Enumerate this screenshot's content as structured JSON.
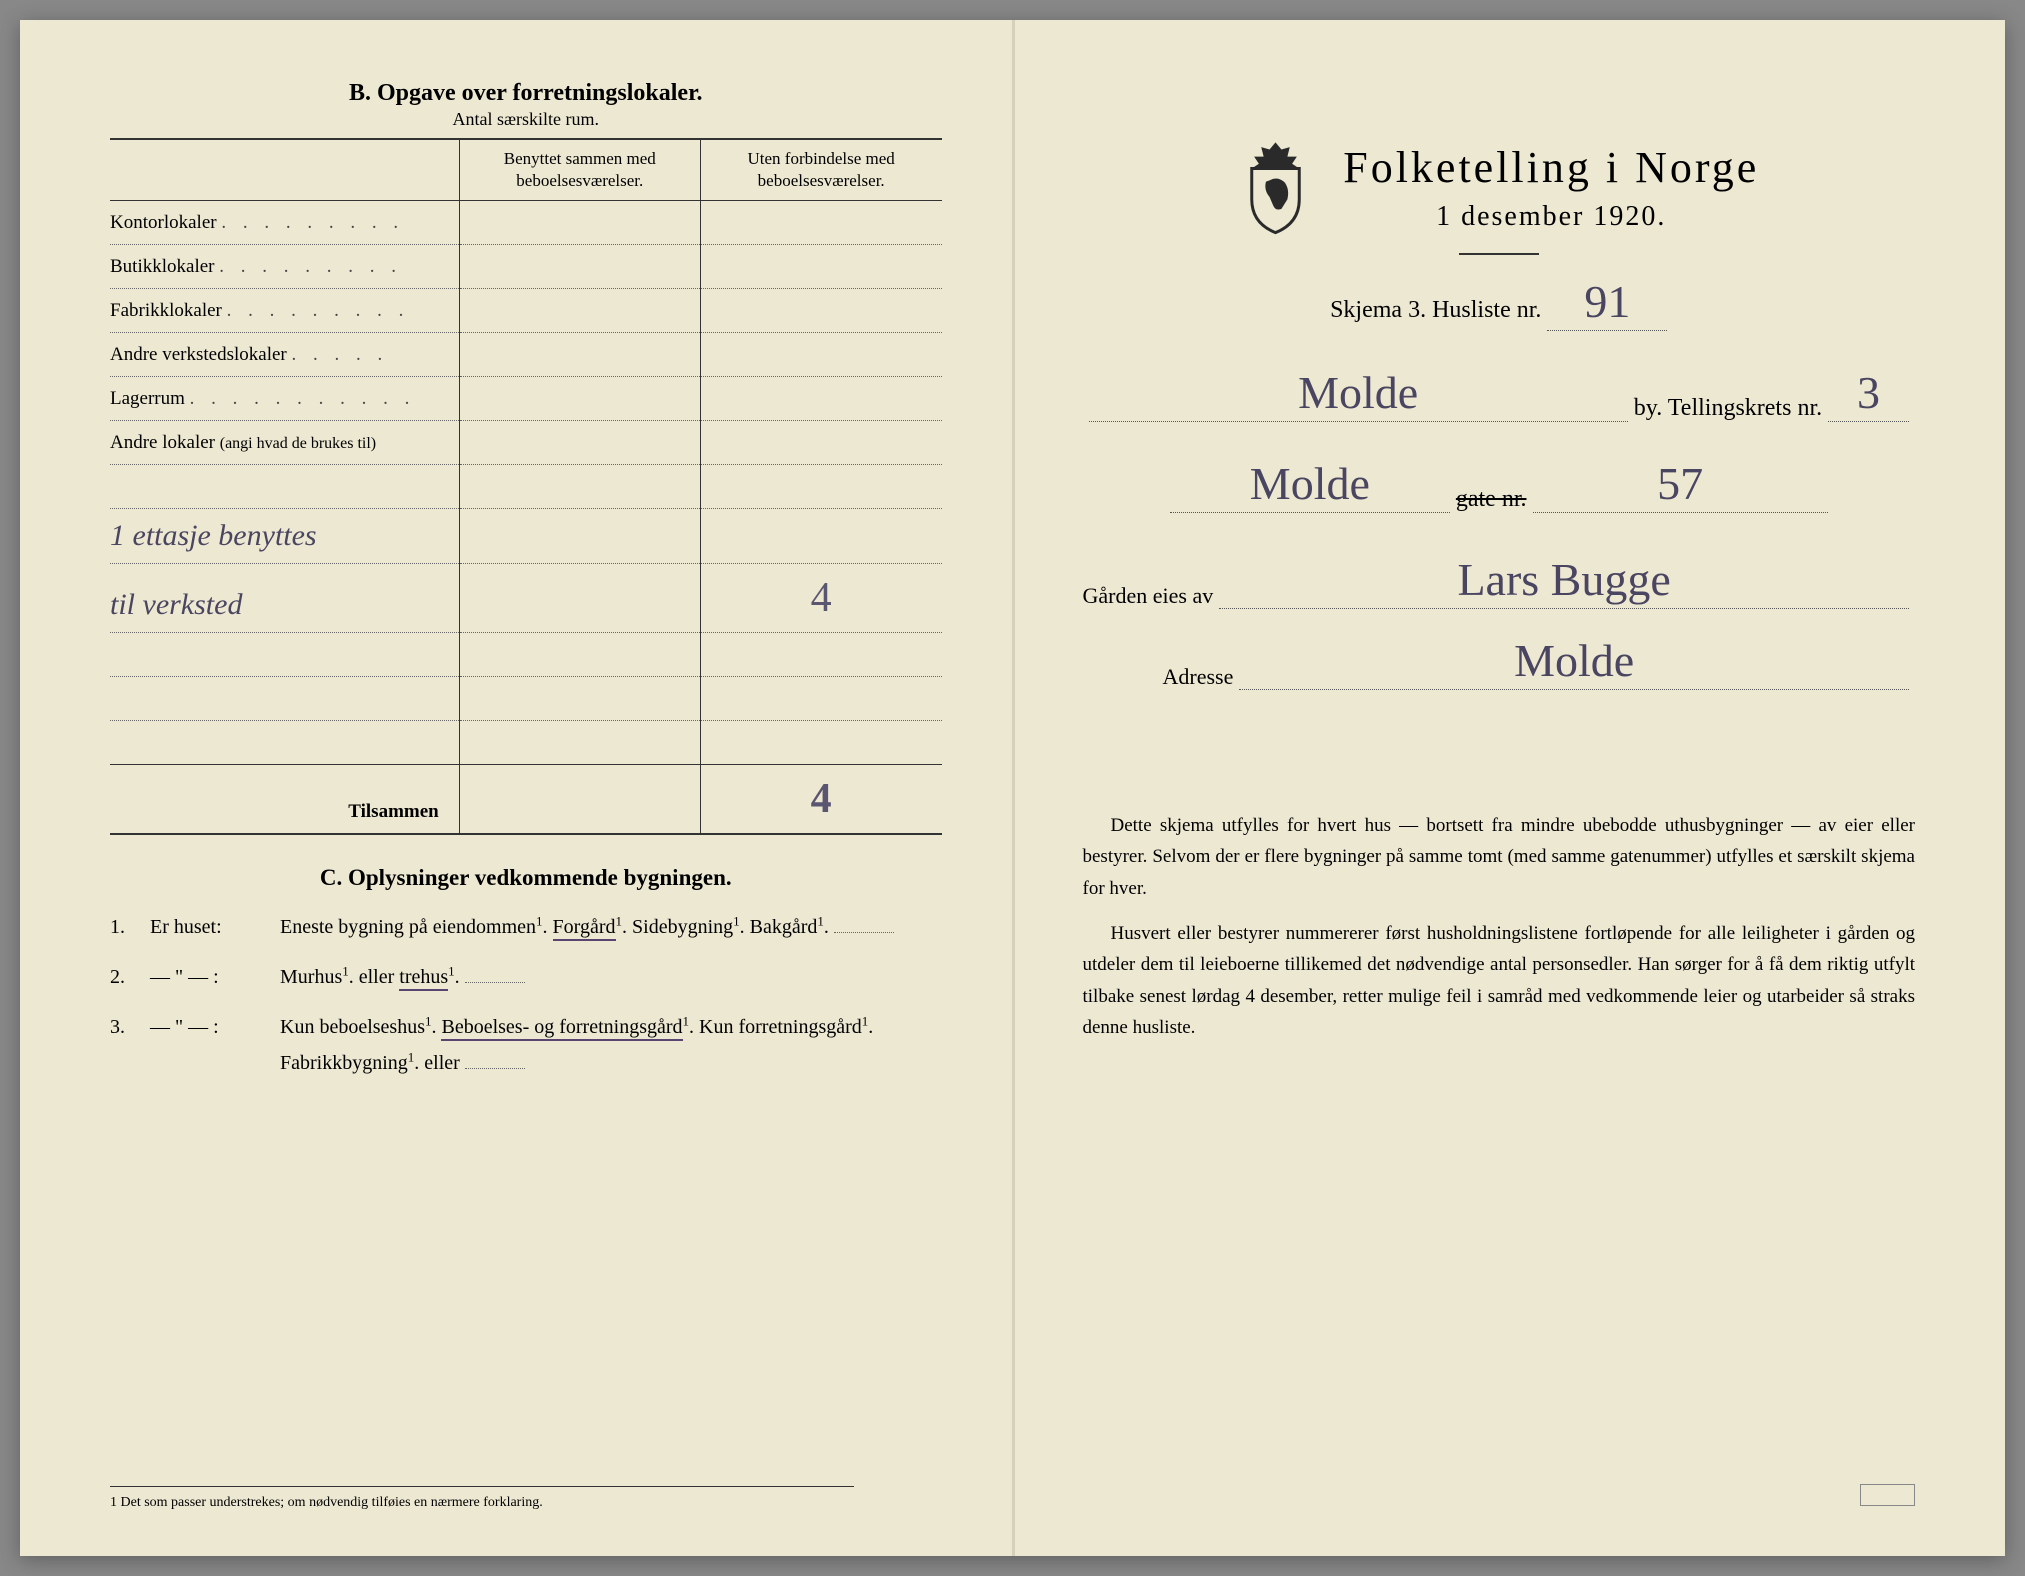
{
  "colors": {
    "paper": "#ede8d2",
    "ink": "#2a2a2a",
    "handwriting": "#4a4560"
  },
  "left": {
    "section_b": {
      "title": "B.  Opgave over forretningslokaler.",
      "subtitle": "Antal særskilte rum.",
      "col2_header": "Benyttet sammen med beboelsesværelser.",
      "col3_header": "Uten forbindelse med beboelsesværelser.",
      "rows": [
        {
          "label": "Kontorlokaler",
          "dots": ". . . . . . . . .",
          "c2": "",
          "c3": ""
        },
        {
          "label": "Butikklokaler",
          "dots": ". . . . . . . . .",
          "c2": "",
          "c3": ""
        },
        {
          "label": "Fabrikklokaler",
          "dots": ". . . . . . . . .",
          "c2": "",
          "c3": ""
        },
        {
          "label": "Andre verkstedslokaler",
          "dots": ". . . . .",
          "c2": "",
          "c3": ""
        },
        {
          "label": "Lagerrum",
          "dots": ". . . . . . . . . . .",
          "c2": "",
          "c3": ""
        },
        {
          "label": "Andre lokaler",
          "note": "(angi hvad de brukes til)",
          "c2": "",
          "c3": ""
        }
      ],
      "handwritten_rows": [
        {
          "text": "1 ettasje benyttes",
          "c2": "",
          "c3": ""
        },
        {
          "text": "til verksted",
          "c2": "",
          "c3": "4"
        }
      ],
      "blank_rows": 3,
      "total_label": "Tilsammen",
      "total_c2": "",
      "total_c3": "4"
    },
    "section_c": {
      "title": "C.  Oplysninger vedkommende bygningen.",
      "items": [
        {
          "num": "1.",
          "label": "Er huset:",
          "content_parts": [
            "Eneste bygning på eiendommen",
            "Forgård",
            "Sidebygning",
            "Bakgård"
          ],
          "underlined": "Forgård"
        },
        {
          "num": "2.",
          "label": "— \" — :",
          "content_parts": [
            "Murhus",
            "eller",
            "trehus"
          ],
          "underlined": "trehus"
        },
        {
          "num": "3.",
          "label": "— \" — :",
          "content_parts": [
            "Kun beboelseshus",
            "Beboelses- og forretningsgård",
            "Kun forretningsgård",
            "Fabrikkbygning",
            "eller"
          ],
          "underlined": "Beboelses- og forretningsgård"
        }
      ]
    },
    "footnote": "1  Det som passer understrekes; om nødvendig tilføies en nærmere forklaring."
  },
  "right": {
    "title": "Folketelling i Norge",
    "date": "1 desember 1920.",
    "form_label": "Skjema 3.  Husliste nr.",
    "husliste_nr": "91",
    "by_value": "Molde",
    "by_label": "by.   Tellingskrets nr.",
    "tellingskrets_nr": "3",
    "gate_value": "Molde",
    "gate_label": "gate nr.",
    "gate_nr": "57",
    "owner_label": "Gården eies av",
    "owner_value": "Lars Bugge",
    "adresse_label": "Adresse",
    "adresse_value": "Molde",
    "instructions": {
      "p1": "Dette skjema utfylles for hvert hus — bortsett fra mindre ubebodde uthusbygninger — av eier eller bestyrer. Selvom der er flere bygninger på samme tomt (med samme gatenummer) utfylles et særskilt skjema for hver.",
      "p2": "Husvert eller bestyrer nummererer først husholdningslistene fortløpende for alle leiligheter i gården og utdeler dem til leieboerne tillikemed det nødvendige antal personsedler. Han sørger for å få dem riktig utfylt tilbake senest lørdag 4 desember, retter mulige feil i samråd med vedkommende leier og utarbeider så straks denne husliste."
    }
  }
}
